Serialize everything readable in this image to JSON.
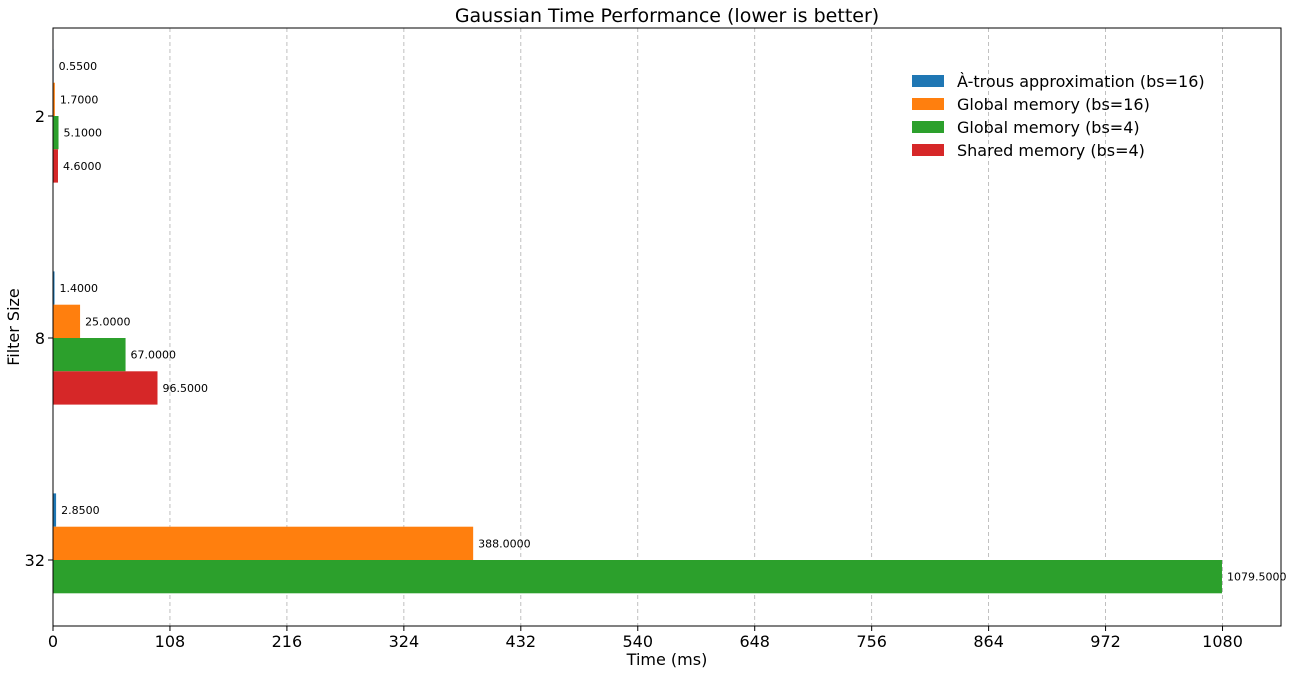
{
  "chart_data": {
    "type": "bar",
    "orientation": "horizontal",
    "title": "Gaussian Time Performance (lower is better)",
    "xlabel": "Time (ms)",
    "ylabel": "Filter Size",
    "categories": [
      "2",
      "8",
      "32"
    ],
    "xlim": [
      0,
      1134
    ],
    "xticks": [
      0,
      108,
      216,
      324,
      432,
      540,
      648,
      756,
      864,
      972,
      1080
    ],
    "grid": "x-only",
    "legend_position": "top-right",
    "series": [
      {
        "name": "À-trous approximation (bs=16)",
        "color": "#1f77b4",
        "values": [
          0.55,
          1.4,
          2.85
        ],
        "labels": [
          "0.5500",
          "1.4000",
          "2.8500"
        ]
      },
      {
        "name": "Global memory (bs=16)",
        "color": "#ff7f0e",
        "values": [
          1.7,
          25.0,
          388.0
        ],
        "labels": [
          "1.7000",
          "25.0000",
          "388.0000"
        ]
      },
      {
        "name": "Global memory (bs=4)",
        "color": "#2ca02c",
        "values": [
          5.1,
          67.0,
          1079.5
        ],
        "labels": [
          "5.1000",
          "67.0000",
          "1079.5000"
        ]
      },
      {
        "name": "Shared memory (bs=4)",
        "color": "#d62728",
        "values": [
          4.6,
          96.5,
          null
        ],
        "labels": [
          "4.6000",
          "96.5000",
          ""
        ]
      }
    ]
  }
}
